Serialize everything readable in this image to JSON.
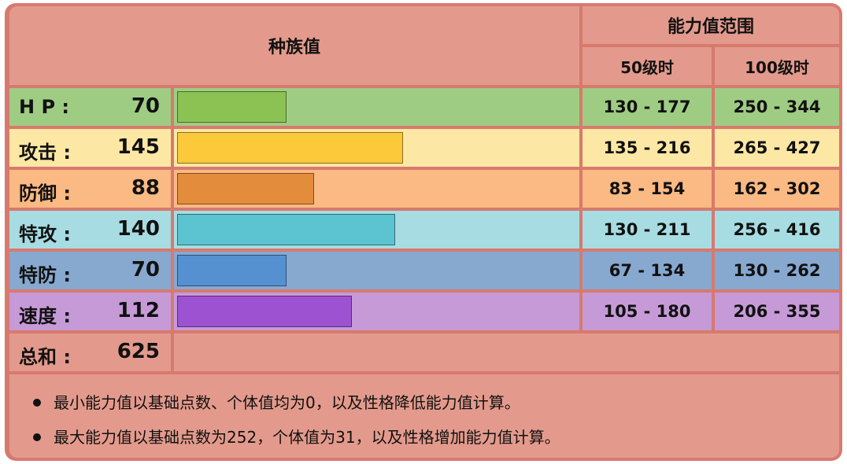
{
  "header": {
    "base_stats": "种族值",
    "stat_range": "能力值范围",
    "level50": "50级时",
    "level100": "100级时"
  },
  "chart_data": {
    "type": "bar",
    "categories": [
      "H P :",
      "攻击 :",
      "防御 :",
      "特攻 :",
      "特防 :",
      "速度 :"
    ],
    "values": [
      70,
      145,
      88,
      140,
      70,
      112
    ],
    "xlim": [
      0,
      255
    ],
    "range_level50": [
      "130 - 177",
      "135 - 216",
      "83 - 154",
      "130 - 211",
      "67 - 134",
      "105 - 180"
    ],
    "range_level100": [
      "250 - 344",
      "265 - 427",
      "162 - 302",
      "256 - 416",
      "130 - 262",
      "206 - 355"
    ],
    "row_colors": [
      "#9fcc83",
      "#fde7a4",
      "#fbb983",
      "#a6dce2",
      "#87a8cf",
      "#c59ad7"
    ],
    "bar_colors": [
      "#8bc253",
      "#fcc93b",
      "#e28c3c",
      "#5bc4d0",
      "#5591d1",
      "#9d52d1"
    ]
  },
  "total": {
    "label": "总和 :",
    "value": "625"
  },
  "notes": [
    "最小能力值以基础点数、个体值均为0，以及性格降低能力值计算。",
    "最大能力值以基础点数为252，个体值为31，以及性格增加能力值计算。"
  ]
}
